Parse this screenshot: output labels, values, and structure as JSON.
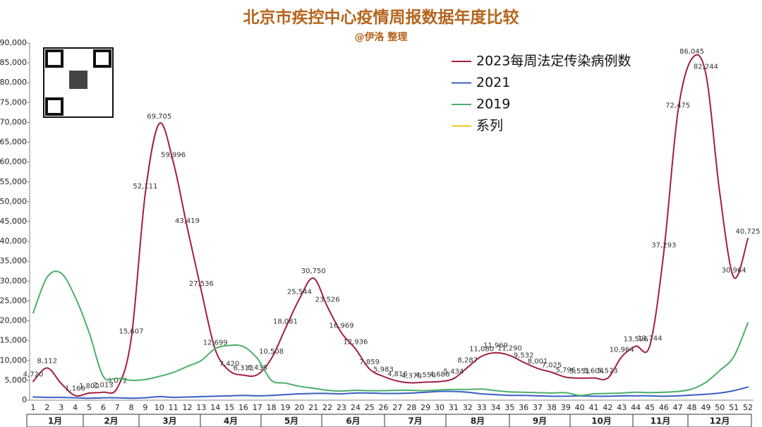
{
  "chart_data": {
    "type": "line",
    "title": "北京市疾控中心疫情周报数据年度比较",
    "subtitle": "@伊洛 整理",
    "x": [
      1,
      2,
      3,
      4,
      5,
      6,
      7,
      8,
      9,
      10,
      11,
      12,
      13,
      14,
      15,
      16,
      17,
      18,
      19,
      20,
      21,
      22,
      23,
      24,
      25,
      26,
      27,
      28,
      29,
      30,
      31,
      32,
      33,
      34,
      35,
      36,
      37,
      38,
      39,
      40,
      41,
      42,
      43,
      44,
      45,
      46,
      47,
      48,
      49,
      50,
      51,
      52
    ],
    "xlim": [
      1,
      52
    ],
    "months": [
      "1月",
      "2月",
      "3月",
      "4月",
      "5月",
      "6月",
      "7月",
      "8月",
      "9月",
      "10月",
      "11月",
      "12月"
    ],
    "ylim": [
      0,
      90000
    ],
    "yticks": [
      0,
      {
        "value": 5000,
        "label": "5,000"
      },
      {
        "value": 10000,
        "label": "10,000"
      },
      {
        "value": 15000,
        "label": "15,000"
      },
      {
        "value": 20000,
        "label": "20,000"
      },
      {
        "value": 25000,
        "label": "25,000"
      },
      {
        "value": 30000,
        "label": "30,000"
      },
      {
        "value": 35000,
        "label": "35,000"
      },
      {
        "value": 40000,
        "label": "40,000"
      },
      {
        "value": 45000,
        "label": "45,000"
      },
      {
        "value": 50000,
        "label": "50,000"
      },
      {
        "value": 55000,
        "label": "55,000"
      },
      {
        "value": 60000,
        "label": "60,000"
      },
      {
        "value": 65000,
        "label": "65,000"
      },
      {
        "value": 70000,
        "label": "70,000"
      },
      {
        "value": 75000,
        "label": "75,000"
      },
      {
        "value": 80000,
        "label": "80,000"
      },
      {
        "value": 85000,
        "label": "85,000"
      },
      {
        "value": 90000,
        "label": "90,000"
      }
    ],
    "series": [
      {
        "name": "2023每周法定传染病例数",
        "color": "#a3203f",
        "values": [
          4720,
          8112,
          4200,
          1166,
          1802,
          2013,
          3072,
          15607,
          52111,
          69705,
          59996,
          43419,
          27536,
          12699,
          7420,
          6312,
          6438,
          10508,
          18081,
          25544,
          30750,
          23526,
          16969,
          12936,
          7859,
          5983,
          4816,
          4370,
          4550,
          4686,
          5434,
          8287,
          11080,
          11969,
          11290,
          9532,
          8001,
          7025,
          5796,
          5551,
          5604,
          5573,
          10964,
          13596,
          13744,
          37293,
          72475,
          86045,
          82244,
          52000,
          30964,
          40725
        ],
        "value_labels": [
          "4,720",
          "8,112",
          null,
          "1,166",
          "1,802",
          "2,013",
          "3,072",
          "15,607",
          "52,111",
          "69,705",
          "59,996",
          "43,419",
          "27,536",
          "12,699",
          "7,420",
          "6,312",
          "6,438",
          "10,508",
          "18,081",
          "25,544",
          "30,750",
          "23,526",
          "16,969",
          "12,936",
          "7,859",
          "5,983",
          "4,816",
          "4,370",
          "4,550",
          "4,686",
          "5,434",
          "8,287",
          "11,080",
          "11,969",
          "11,290",
          "9,532",
          "8,001",
          "7,025",
          "5,796",
          "5,551",
          "5,604",
          "5,573",
          "10,964",
          "13,596",
          "13,744",
          "37,293",
          "72,475",
          "86,045",
          "82,244",
          null,
          "30,964",
          "40,725"
        ]
      },
      {
        "name": "2021",
        "color": "#3a5fc4",
        "values": [
          800,
          700,
          700,
          600,
          500,
          600,
          600,
          500,
          600,
          900,
          700,
          800,
          900,
          1000,
          1100,
          1200,
          1100,
          1200,
          1400,
          1600,
          1700,
          1700,
          1600,
          1800,
          1800,
          1700,
          1700,
          1800,
          2000,
          2200,
          2200,
          2000,
          1600,
          1400,
          1200,
          1200,
          1100,
          1000,
          1000,
          1100,
          1000,
          1000,
          1100,
          1100,
          1100,
          1000,
          1100,
          1300,
          1500,
          1800,
          2400,
          3300
        ]
      },
      {
        "name": "2019",
        "color": "#4caf6a",
        "values": [
          22000,
          31000,
          32000,
          26000,
          17000,
          6000,
          5500,
          5000,
          5200,
          6000,
          7000,
          8500,
          10000,
          13000,
          13800,
          13500,
          10500,
          5000,
          4300,
          3500,
          3000,
          2500,
          2300,
          2500,
          2400,
          2400,
          2500,
          2500,
          2400,
          2600,
          2700,
          2700,
          2800,
          2400,
          2100,
          2000,
          1900,
          1800,
          1900,
          1200,
          1600,
          1700,
          1800,
          2000,
          1900,
          2000,
          2200,
          2800,
          4500,
          7500,
          11000,
          19500
        ]
      },
      {
        "name": "系列",
        "color": "#f2c318",
        "values": [
          null,
          null,
          null,
          null,
          null,
          null,
          null,
          null,
          null,
          null,
          null,
          null,
          null,
          null,
          null,
          null,
          null,
          null,
          null,
          null,
          null,
          null,
          null,
          null,
          null,
          null,
          null,
          null,
          null,
          null,
          null,
          null,
          null,
          null,
          null,
          null,
          null,
          null,
          null,
          null,
          null,
          null,
          null,
          null,
          null,
          null,
          null,
          null,
          null,
          null,
          null,
          null
        ]
      }
    ]
  }
}
